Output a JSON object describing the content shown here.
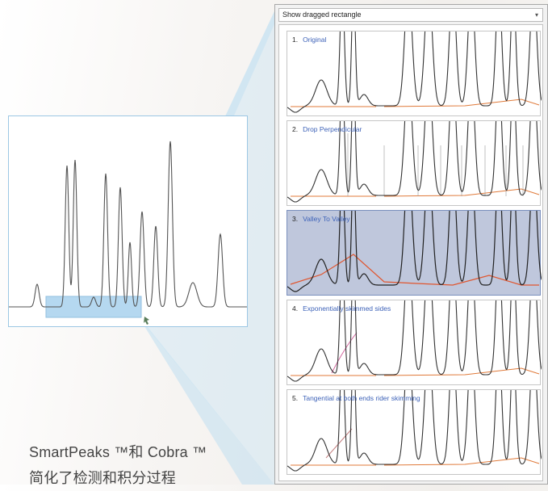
{
  "panel": {
    "dropdown_label": "Show dragged rectangle",
    "dropdown_icon": "chevron-down-icon",
    "methods": [
      {
        "number": "1.",
        "label": "Original",
        "selected": false
      },
      {
        "number": "2.",
        "label": "Drop Perpendicular",
        "selected": false
      },
      {
        "number": "3.",
        "label": "Valley To Valley",
        "selected": true
      },
      {
        "number": "4.",
        "label": "Exponentially skimmed sides",
        "selected": false
      },
      {
        "number": "5.",
        "label": "Tangential at both ends rider skimming",
        "selected": false
      }
    ]
  },
  "caption": {
    "line1": "SmartPeaks ™和 Cobra ™",
    "line2": "简化了检测和积分过程"
  },
  "colors": {
    "accent_blue": "#9cc7e4",
    "selected_card": "#bfc7dc",
    "baseline": "#e07a3a",
    "trace": "#333333"
  }
}
